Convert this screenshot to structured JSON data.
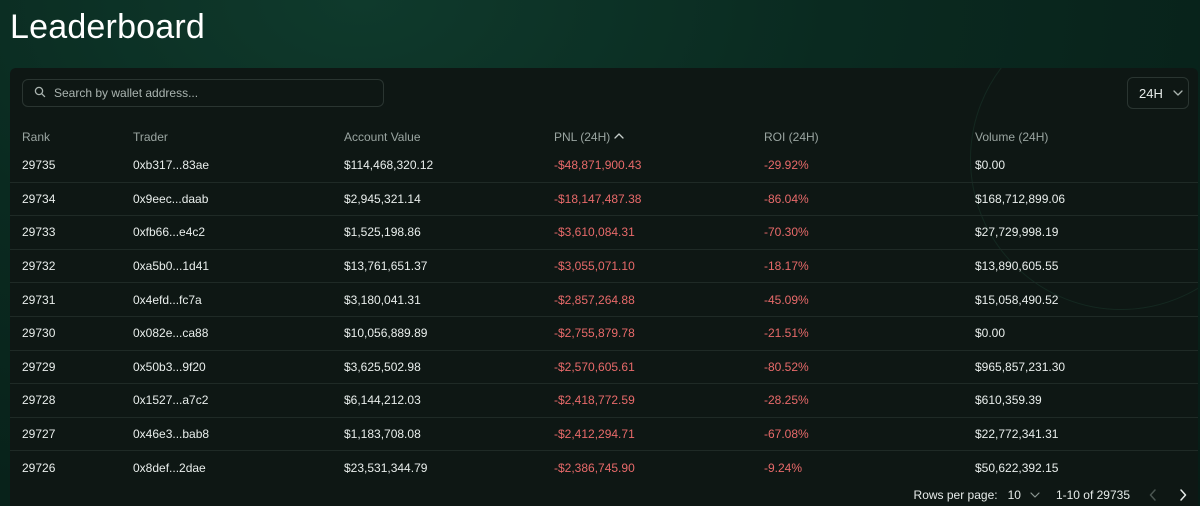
{
  "page": {
    "title": "Leaderboard"
  },
  "search": {
    "placeholder": "Search by wallet address...",
    "value": "",
    "icon": "search-icon"
  },
  "period_selector": {
    "selected": "24H",
    "icon": "chevron-down-icon"
  },
  "table": {
    "columns": [
      "Rank",
      "Trader",
      "Account Value",
      "PNL (24H)",
      "ROI (24H)",
      "Volume (24H)"
    ],
    "sorted_column": "PNL (24H)",
    "sort_direction": "ascending",
    "rows": [
      {
        "rank": "29735",
        "trader": "0xb317...83ae",
        "account_value": "$114,468,320.12",
        "pnl": "-$48,871,900.43",
        "roi": "-29.92%",
        "volume": "$0.00"
      },
      {
        "rank": "29734",
        "trader": "0x9eec...daab",
        "account_value": "$2,945,321.14",
        "pnl": "-$18,147,487.38",
        "roi": "-86.04%",
        "volume": "$168,712,899.06"
      },
      {
        "rank": "29733",
        "trader": "0xfb66...e4c2",
        "account_value": "$1,525,198.86",
        "pnl": "-$3,610,084.31",
        "roi": "-70.30%",
        "volume": "$27,729,998.19"
      },
      {
        "rank": "29732",
        "trader": "0xa5b0...1d41",
        "account_value": "$13,761,651.37",
        "pnl": "-$3,055,071.10",
        "roi": "-18.17%",
        "volume": "$13,890,605.55"
      },
      {
        "rank": "29731",
        "trader": "0x4efd...fc7a",
        "account_value": "$3,180,041.31",
        "pnl": "-$2,857,264.88",
        "roi": "-45.09%",
        "volume": "$15,058,490.52"
      },
      {
        "rank": "29730",
        "trader": "0x082e...ca88",
        "account_value": "$10,056,889.89",
        "pnl": "-$2,755,879.78",
        "roi": "-21.51%",
        "volume": "$0.00"
      },
      {
        "rank": "29729",
        "trader": "0x50b3...9f20",
        "account_value": "$3,625,502.98",
        "pnl": "-$2,570,605.61",
        "roi": "-80.52%",
        "volume": "$965,857,231.30"
      },
      {
        "rank": "29728",
        "trader": "0x1527...a7c2",
        "account_value": "$6,144,212.03",
        "pnl": "-$2,418,772.59",
        "roi": "-28.25%",
        "volume": "$610,359.39"
      },
      {
        "rank": "29727",
        "trader": "0x46e3...bab8",
        "account_value": "$1,183,708.08",
        "pnl": "-$2,412,294.71",
        "roi": "-67.08%",
        "volume": "$22,772,341.31"
      },
      {
        "rank": "29726",
        "trader": "0x8def...2dae",
        "account_value": "$23,531,344.79",
        "pnl": "-$2,386,745.90",
        "roi": "-9.24%",
        "volume": "$50,622,392.15"
      }
    ]
  },
  "pagination": {
    "rows_per_page_label": "Rows per page:",
    "rows_per_page_value": "10",
    "range_text": "1-10 of 29735"
  },
  "colors": {
    "background": "#0a2a20",
    "panel": "#0e1714",
    "negative": "#e86a6a",
    "muted_text": "#9aa5a1"
  }
}
